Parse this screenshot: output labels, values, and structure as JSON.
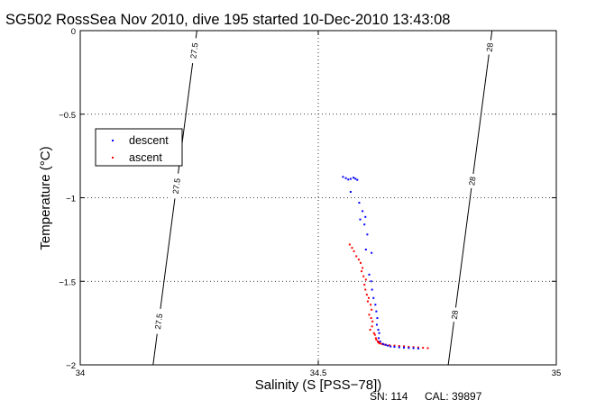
{
  "chart_data": {
    "type": "scatter",
    "title": "SG502 RossSea Nov 2010, dive 195 started 10-Dec-2010 13:43:08",
    "xlabel": "Salinity (S [PSS−78])",
    "ylabel": "Temperature (°C)",
    "xlim": [
      34,
      35
    ],
    "ylim": [
      -2,
      0
    ],
    "xticks": [
      34,
      34.5,
      35
    ],
    "xtick_labels": [
      "34",
      "34.5",
      "35"
    ],
    "yticks": [
      0,
      -0.5,
      -1,
      -1.5,
      -2
    ],
    "ytick_labels": [
      "0",
      "−0.5",
      "−1",
      "−1.5",
      "−2"
    ],
    "grid": true,
    "legend_position": "upper-left",
    "series": [
      {
        "name": "descent",
        "color": "#0000ff",
        "x": [
          34.552,
          34.558,
          34.563,
          34.568,
          34.574,
          34.578,
          34.582,
          34.568,
          34.586,
          34.593,
          34.599,
          34.588,
          34.597,
          34.603,
          34.6,
          34.612,
          34.607,
          34.611,
          34.613,
          34.616,
          34.62,
          34.622,
          34.624,
          34.623,
          34.626,
          34.628,
          34.627,
          34.63,
          34.636,
          34.641,
          34.646,
          34.652,
          34.66,
          34.67,
          34.68,
          34.69,
          34.7,
          34.71
        ],
        "y": [
          -0.875,
          -0.883,
          -0.891,
          -0.887,
          -0.88,
          -0.886,
          -0.893,
          -0.965,
          -1.03,
          -1.08,
          -1.115,
          -1.13,
          -1.16,
          -1.22,
          -1.31,
          -1.33,
          -1.46,
          -1.5,
          -1.55,
          -1.6,
          -1.64,
          -1.68,
          -1.72,
          -1.76,
          -1.79,
          -1.81,
          -1.84,
          -1.86,
          -1.875,
          -1.88,
          -1.885,
          -1.89,
          -1.892,
          -1.895,
          -1.897,
          -1.899,
          -1.9,
          -1.902
        ]
      },
      {
        "name": "ascent",
        "color": "#ff0000",
        "x": [
          34.566,
          34.571,
          34.575,
          34.58,
          34.585,
          34.589,
          34.593,
          34.591,
          34.595,
          34.6,
          34.597,
          34.599,
          34.602,
          34.606,
          34.604,
          34.61,
          34.612,
          34.607,
          34.611,
          34.614,
          34.613,
          34.609,
          34.617,
          34.619,
          34.621,
          34.622,
          34.625,
          34.626,
          34.628,
          34.63,
          34.634,
          34.637,
          34.642,
          34.65,
          34.66,
          34.67,
          34.68,
          34.69,
          34.7,
          34.71,
          34.72,
          34.73
        ],
        "y": [
          -1.28,
          -1.3,
          -1.32,
          -1.35,
          -1.37,
          -1.39,
          -1.42,
          -1.44,
          -1.47,
          -1.49,
          -1.52,
          -1.55,
          -1.58,
          -1.6,
          -1.62,
          -1.64,
          -1.67,
          -1.7,
          -1.72,
          -1.74,
          -1.77,
          -1.79,
          -1.81,
          -1.82,
          -1.84,
          -1.85,
          -1.86,
          -1.865,
          -1.87,
          -1.872,
          -1.875,
          -1.878,
          -1.88,
          -1.883,
          -1.885,
          -1.887,
          -1.889,
          -1.892,
          -1.894,
          -1.896,
          -1.898,
          -1.9
        ]
      }
    ],
    "density_contours": [
      {
        "label": "27.5",
        "s_at_top": 34.245,
        "s_at_bottom": 34.153
      },
      {
        "label": "28",
        "s_at_top": 34.865,
        "s_at_bottom": 34.773
      }
    ],
    "contour_label_positions": [
      {
        "label": "27.5",
        "y": -0.12,
        "contour": 0
      },
      {
        "label": "27.5",
        "y": -0.93,
        "contour": 0
      },
      {
        "label": "27.5",
        "y": -1.74,
        "contour": 0
      },
      {
        "label": "28",
        "y": -0.1,
        "contour": 1
      },
      {
        "label": "28",
        "y": -0.9,
        "contour": 1
      },
      {
        "label": "28",
        "y": -1.7,
        "contour": 1
      }
    ]
  },
  "footer": {
    "sn": "SN: 114",
    "cal": "CAL: 39897"
  }
}
